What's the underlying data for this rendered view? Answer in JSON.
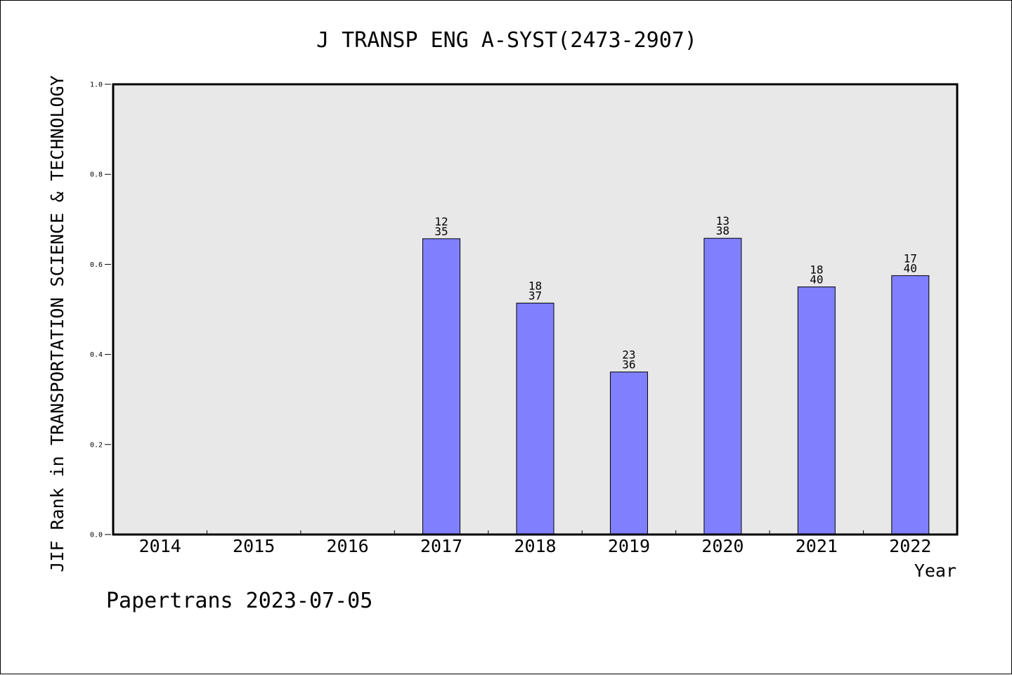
{
  "chart_data": {
    "type": "bar",
    "title": "J TRANSP ENG A-SYST(2473-2907)",
    "xlabel": "Year",
    "ylabel": "JIF Rank in TRANSPORTATION SCIENCE & TECHNOLOGY",
    "ylim": [
      0,
      1.0
    ],
    "yticks": [
      "0.0",
      "0.2",
      "0.4",
      "0.6",
      "0.8",
      "1.0"
    ],
    "categories": [
      "2014",
      "2015",
      "2016",
      "2017",
      "2018",
      "2019",
      "2020",
      "2021",
      "2022"
    ],
    "values": [
      null,
      null,
      null,
      0.657,
      0.514,
      0.361,
      0.658,
      0.55,
      0.575
    ],
    "rank_labels": [
      null,
      null,
      null,
      {
        "rank": "12",
        "total": "35"
      },
      {
        "rank": "18",
        "total": "37"
      },
      {
        "rank": "23",
        "total": "36"
      },
      {
        "rank": "13",
        "total": "38"
      },
      {
        "rank": "18",
        "total": "40"
      },
      {
        "rank": "17",
        "total": "40"
      }
    ],
    "bar_color": "#8080ff",
    "plot_background": "#e8e8e8",
    "grid": false,
    "legend": "none"
  },
  "footer": {
    "text": "Papertrans 2023-07-05"
  }
}
